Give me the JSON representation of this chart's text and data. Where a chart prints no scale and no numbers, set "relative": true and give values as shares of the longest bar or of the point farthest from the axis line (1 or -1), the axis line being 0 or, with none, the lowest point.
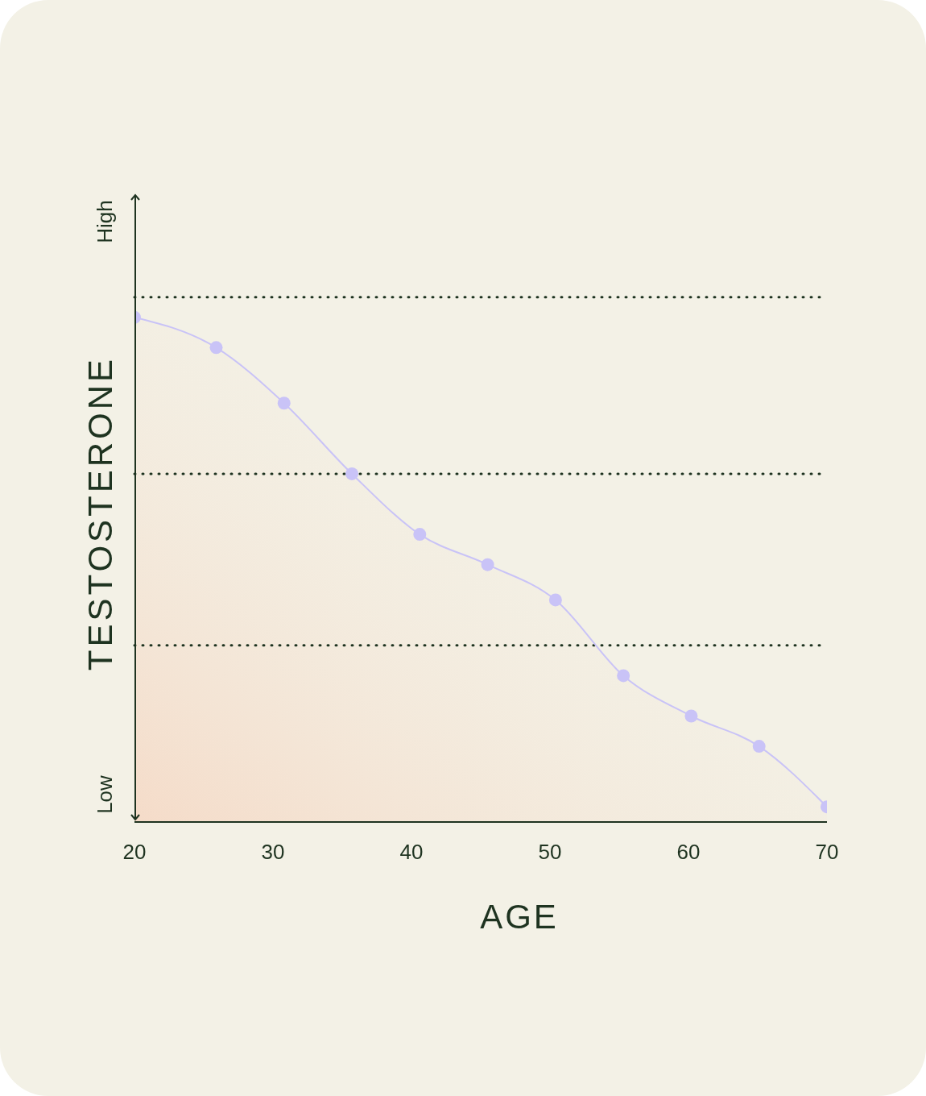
{
  "chart_data": {
    "type": "area",
    "relative": true,
    "xlabel": "AGE",
    "ylabel": "TESTOSTERONE",
    "annotations": [
      "High",
      "Low"
    ],
    "x": [
      20,
      25.9,
      30.8,
      35.7,
      40.6,
      45.5,
      50.4,
      55.3,
      60.2,
      65.1,
      70
    ],
    "xlim": [
      20,
      70
    ],
    "xticks": [
      20,
      30,
      40,
      50,
      60,
      70
    ],
    "series": [
      {
        "color": "#c9c3f7",
        "values": [
          1,
          0.94,
          0.83,
          0.69,
          0.57,
          0.51,
          0.44,
          0.29,
          0.21,
          0.15,
          0.03
        ]
      }
    ],
    "marker": "circle",
    "ref_lines": [
      {
        "axis": "y",
        "value": 1.04,
        "line_style": "dotted",
        "color": "#1e3320"
      },
      {
        "axis": "y",
        "value": 0.69,
        "line_style": "dotted",
        "color": "#1e3320"
      },
      {
        "axis": "y",
        "value": 0.35,
        "line_style": "dotted",
        "color": "#1e3320"
      }
    ]
  }
}
